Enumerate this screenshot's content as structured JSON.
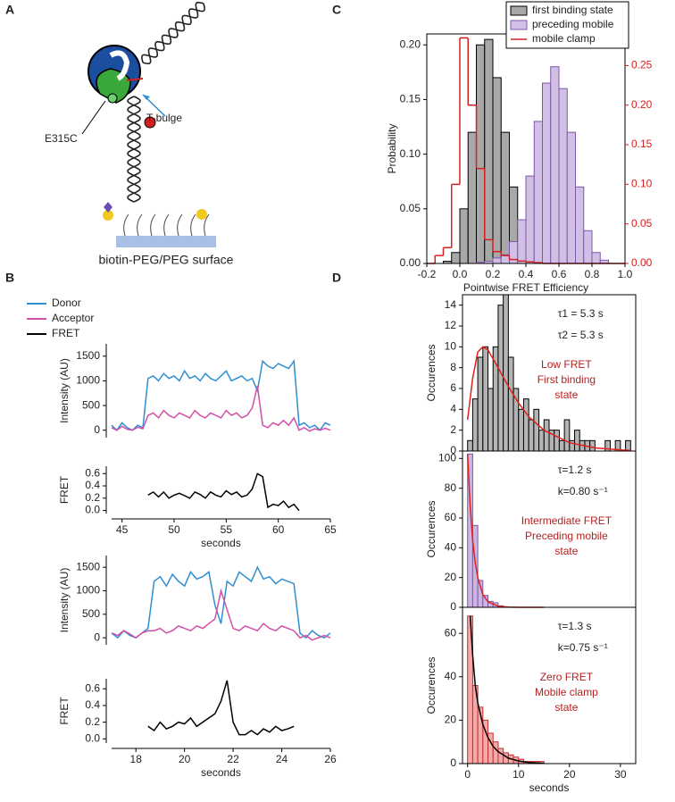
{
  "panel_labels": [
    "A",
    "B",
    "C",
    "D"
  ],
  "diagram": {
    "labels": [
      "E315C",
      "T-bulge",
      "biotin-PEG/PEG surface"
    ]
  },
  "chart_data": [
    {
      "type": "histogram",
      "xlabel": "Pointwise FRET Efficiency",
      "ylabel": "Probability",
      "bins": [
        -0.2,
        -0.15,
        -0.1,
        -0.05,
        0,
        0.05,
        0.1,
        0.15,
        0.2,
        0.25,
        0.3,
        0.35,
        0.4,
        0.45,
        0.5,
        0.55,
        0.6,
        0.65,
        0.7,
        0.75,
        0.8,
        0.85,
        0.9,
        0.95,
        1.0
      ],
      "xlim": [
        -0.2,
        1.0
      ],
      "xticks": [
        -0.2,
        {
          "value": 0,
          "label": "0.0"
        },
        0.2,
        0.4,
        0.6,
        0.8,
        {
          "value": 1,
          "label": "1.0"
        }
      ],
      "ylim": [
        0,
        0.21
      ],
      "yticks": [
        {
          "value": 0,
          "label": "0.00"
        },
        0.05,
        {
          "value": 0.1,
          "label": "0.10"
        },
        0.15,
        {
          "value": 0.2,
          "label": "0.20"
        }
      ],
      "y2lim": [
        0,
        0.29
      ],
      "y2ticks": [
        {
          "value": 0,
          "label": "0.00"
        },
        0.05,
        {
          "value": 0.1,
          "label": "0.10"
        },
        0.15,
        {
          "value": 0.2,
          "label": "0.20"
        },
        0.25
      ],
      "series": [
        {
          "name": "first binding state",
          "color": "#a8a8a8",
          "edgecolor": "#000000",
          "values": [
            0,
            0,
            0.002,
            0.01,
            0.05,
            0.12,
            0.2,
            0.205,
            0.17,
            0.12,
            0.07,
            0.03,
            0.01,
            0.005,
            0,
            0,
            0,
            0,
            0,
            0,
            0,
            0,
            0,
            0
          ]
        },
        {
          "name": "preceding mobile",
          "color": "#d2bfe6",
          "edgecolor": "#7e57a8",
          "values": [
            0,
            0,
            0,
            0,
            0,
            0,
            0.001,
            0.002,
            0.005,
            0.008,
            0.02,
            0.04,
            0.08,
            0.13,
            0.165,
            0.18,
            0.16,
            0.12,
            0.07,
            0.03,
            0.01,
            0.003,
            0,
            0
          ]
        },
        {
          "name": "mobile clamp",
          "color": "#d62020",
          "style": "step",
          "axis": "y2",
          "values": [
            0,
            0.01,
            0.02,
            0.1,
            0.285,
            0.2,
            0.12,
            0.03,
            0.015,
            0.01,
            0.005,
            0.003,
            0.002,
            0.001,
            0,
            0,
            0,
            0,
            0,
            0,
            0,
            0,
            0,
            0
          ]
        }
      ]
    },
    {
      "type": "line",
      "ylabel": "Intensity (AU)",
      "x": [
        44,
        44.5,
        45,
        45.5,
        46,
        46.5,
        47,
        47.5,
        48,
        48.5,
        49,
        49.5,
        50,
        50.5,
        51,
        51.5,
        52,
        52.5,
        53,
        53.5,
        54,
        54.5,
        55,
        55.5,
        56,
        56.5,
        57,
        57.5,
        58,
        58.5,
        59,
        59.5,
        60,
        60.5,
        61,
        61.5,
        62,
        62.5,
        63,
        63.5,
        64,
        64.5,
        65
      ],
      "xlim": [
        44,
        65
      ],
      "ylim": [
        -150,
        1750
      ],
      "yticks": [
        0,
        500,
        1000,
        1500
      ],
      "series": [
        {
          "name": "Donor",
          "color": "#2f8fd0",
          "values": [
            100,
            0,
            150,
            50,
            0,
            100,
            50,
            1050,
            1100,
            1000,
            1150,
            1050,
            1100,
            1000,
            1200,
            1050,
            1100,
            1000,
            1150,
            1050,
            1000,
            1100,
            1200,
            1000,
            1050,
            1100,
            1000,
            1050,
            800,
            1400,
            1300,
            1250,
            1350,
            1300,
            1250,
            1400,
            100,
            150,
            50,
            100,
            0,
            150,
            100
          ]
        },
        {
          "name": "Acceptor",
          "color": "#d24fa8",
          "values": [
            50,
            0,
            80,
            20,
            0,
            60,
            30,
            300,
            350,
            250,
            400,
            300,
            250,
            350,
            300,
            250,
            400,
            300,
            250,
            350,
            300,
            250,
            400,
            300,
            350,
            250,
            300,
            450,
            900,
            100,
            50,
            150,
            100,
            200,
            100,
            250,
            0,
            50,
            -20,
            30,
            0,
            40,
            0
          ]
        }
      ]
    },
    {
      "type": "line",
      "ylabel": "FRET",
      "xlabel": "seconds",
      "x": [
        44,
        44.5,
        45,
        45.5,
        46,
        46.5,
        47,
        47.5,
        48,
        48.5,
        49,
        49.5,
        50,
        50.5,
        51,
        51.5,
        52,
        52.5,
        53,
        53.5,
        54,
        54.5,
        55,
        55.5,
        56,
        56.5,
        57,
        57.5,
        58,
        58.5,
        59,
        59.5,
        60,
        60.5,
        61,
        61.5,
        62,
        62.5,
        63,
        63.5,
        64,
        64.5,
        65
      ],
      "xlim": [
        44,
        65
      ],
      "xticks": [
        45,
        50,
        55,
        60,
        65
      ],
      "ylim": [
        -0.05,
        0.72
      ],
      "yticks": [
        {
          "value": 0,
          "label": "0.0"
        },
        0.2,
        0.4,
        0.6
      ],
      "series": [
        {
          "name": "FRET",
          "color": "#000000",
          "values": [
            null,
            null,
            null,
            null,
            null,
            null,
            null,
            0.25,
            0.3,
            0.22,
            0.3,
            0.2,
            0.25,
            0.28,
            0.24,
            0.2,
            0.3,
            0.26,
            0.2,
            0.3,
            0.25,
            0.22,
            0.32,
            0.26,
            0.3,
            0.22,
            0.25,
            0.35,
            0.6,
            0.55,
            0.05,
            0.1,
            0.08,
            0.15,
            0.05,
            0.1,
            0,
            null,
            null,
            null,
            null,
            null,
            null
          ]
        }
      ]
    },
    {
      "type": "line",
      "ylabel": "Intensity (AU)",
      "x": [
        17,
        17.25,
        17.5,
        17.75,
        18,
        18.25,
        18.5,
        18.75,
        19,
        19.25,
        19.5,
        19.75,
        20,
        20.25,
        20.5,
        20.75,
        21,
        21.25,
        21.5,
        21.75,
        22,
        22.25,
        22.5,
        22.75,
        23,
        23.25,
        23.5,
        23.75,
        24,
        24.25,
        24.5,
        24.75,
        25,
        25.25,
        25.5,
        25.75,
        26
      ],
      "xlim": [
        17,
        26
      ],
      "ylim": [
        -150,
        1750
      ],
      "yticks": [
        0,
        500,
        1000,
        1500
      ],
      "series": [
        {
          "color": "#2f8fd0",
          "values": [
            100,
            0,
            150,
            50,
            0,
            100,
            200,
            1200,
            1300,
            1100,
            1350,
            1200,
            1100,
            1400,
            1250,
            1300,
            1400,
            700,
            300,
            1200,
            1100,
            1400,
            1300,
            1200,
            1500,
            1250,
            1300,
            1150,
            1250,
            1200,
            1150,
            100,
            0,
            150,
            50,
            0,
            100
          ]
        },
        {
          "color": "#d24fa8",
          "values": [
            100,
            50,
            150,
            80,
            0,
            100,
            150,
            150,
            200,
            100,
            150,
            250,
            200,
            150,
            250,
            200,
            300,
            400,
            1000,
            600,
            200,
            150,
            250,
            200,
            150,
            300,
            200,
            150,
            250,
            200,
            150,
            0,
            50,
            -50,
            0,
            50,
            0
          ]
        }
      ]
    },
    {
      "type": "line",
      "ylabel": "FRET",
      "xlabel": "seconds",
      "x": [
        17,
        17.25,
        17.5,
        17.75,
        18,
        18.25,
        18.5,
        18.75,
        19,
        19.25,
        19.5,
        19.75,
        20,
        20.25,
        20.5,
        20.75,
        21,
        21.25,
        21.5,
        21.75,
        22,
        22.25,
        22.5,
        22.75,
        23,
        23.25,
        23.5,
        23.75,
        24,
        24.25,
        24.5,
        24.75,
        25,
        25.25,
        25.5,
        25.75,
        26
      ],
      "xlim": [
        17,
        26
      ],
      "xticks": [
        18,
        20,
        22,
        24,
        26
      ],
      "ylim": [
        -0.05,
        0.72
      ],
      "yticks": [
        {
          "value": 0,
          "label": "0.0"
        },
        0.2,
        0.4,
        0.6
      ],
      "series": [
        {
          "color": "#000000",
          "values": [
            null,
            null,
            null,
            null,
            null,
            null,
            0.15,
            0.1,
            0.2,
            0.12,
            0.15,
            0.2,
            0.18,
            0.25,
            0.15,
            0.2,
            0.25,
            0.3,
            0.45,
            0.7,
            0.2,
            0.05,
            0.05,
            0.1,
            0.05,
            0.12,
            0.08,
            0.15,
            0.1,
            0.12,
            0.15,
            null,
            null,
            null,
            null,
            null,
            null
          ]
        }
      ]
    },
    {
      "type": "histogram",
      "ylabel": "Occurences",
      "annotations": [
        "τ1 = 5.3 s",
        "τ2 = 5.3 s"
      ],
      "label_lines": [
        "Low FRET",
        "First binding",
        "state"
      ],
      "bins": [
        0,
        1,
        2,
        3,
        4,
        5,
        6,
        7,
        8,
        9,
        10,
        11,
        12,
        13,
        14,
        15,
        16,
        17,
        18,
        19,
        20,
        21,
        22,
        23,
        24,
        25,
        26,
        27,
        28,
        29,
        30,
        31,
        32
      ],
      "xlim": [
        -1,
        33
      ],
      "ylim": [
        0,
        15
      ],
      "yticks": [
        0,
        2,
        4,
        6,
        8,
        10,
        12,
        14
      ],
      "series": [
        {
          "color": "#b4b4b4",
          "edgecolor": "#000000",
          "values": [
            1,
            5,
            9,
            10,
            6,
            10,
            14,
            15,
            9,
            6,
            4,
            5,
            3,
            4,
            2,
            3,
            2,
            2,
            1,
            3,
            1,
            2,
            1,
            1,
            1,
            0,
            0,
            1,
            0,
            1,
            0,
            1
          ]
        },
        {
          "color": "#e0201b",
          "x": [
            0,
            1,
            2,
            3,
            4,
            6,
            8,
            10,
            12,
            15,
            20,
            25,
            30,
            32
          ],
          "values": [
            3,
            7,
            9.5,
            10,
            9.7,
            8,
            6.2,
            4.6,
            3.3,
            2,
            0.8,
            0.3,
            0.1,
            0.05
          ]
        }
      ]
    },
    {
      "type": "histogram",
      "ylabel": "Occurences",
      "annotations": [
        "τ=1.2 s",
        "k=0.80 s⁻¹"
      ],
      "label_lines": [
        "Intermediate FRET",
        "Preceding mobile",
        "state"
      ],
      "bins": [
        0,
        1,
        2,
        3,
        4,
        5,
        6,
        7,
        8,
        9,
        10,
        11,
        12,
        13,
        14,
        15,
        16
      ],
      "xlim": [
        -1,
        33
      ],
      "ylim": [
        0,
        105
      ],
      "yticks": [
        0,
        20,
        40,
        60,
        80,
        100
      ],
      "series": [
        {
          "color": "#cbb6e3",
          "edgecolor": "#7e57a8",
          "values": [
            103,
            55,
            18,
            8,
            4,
            3,
            1,
            0,
            0,
            0,
            0,
            0,
            0,
            0,
            0,
            0
          ]
        },
        {
          "color": "#e0201b",
          "x": [
            0,
            0.5,
            1,
            1.5,
            2,
            3,
            4,
            6,
            8,
            10,
            15
          ],
          "values": [
            103,
            68,
            45,
            30,
            20,
            8.6,
            3.7,
            0.7,
            0.1,
            0,
            0
          ]
        }
      ]
    },
    {
      "type": "histogram",
      "ylabel": "Occurences",
      "xlabel": "seconds",
      "annotations": [
        "τ=1.3 s",
        "k=0.75 s⁻¹"
      ],
      "label_lines": [
        "Zero FRET",
        "Mobile clamp",
        "state"
      ],
      "bins": [
        0,
        1,
        2,
        3,
        4,
        5,
        6,
        7,
        8,
        9,
        10,
        11,
        12,
        13,
        14,
        15
      ],
      "xlim": [
        -1,
        33
      ],
      "xticks": [
        0,
        10,
        20,
        30
      ],
      "ylim": [
        0,
        72
      ],
      "yticks": [
        0,
        20,
        40,
        60
      ],
      "series": [
        {
          "color": "#f5aaaa",
          "edgecolor": "#c43030",
          "values": [
            68,
            36,
            26,
            20,
            14,
            10,
            7,
            5,
            4,
            3,
            2,
            1,
            1,
            1,
            1
          ]
        },
        {
          "color": "#000000",
          "x": [
            0.5,
            1,
            1.5,
            2,
            3,
            4,
            5,
            6,
            8,
            10,
            12,
            15
          ],
          "values": [
            68,
            50,
            36,
            28,
            18,
            12,
            8,
            5.5,
            2.5,
            1.2,
            0.5,
            0.1
          ]
        }
      ]
    }
  ]
}
